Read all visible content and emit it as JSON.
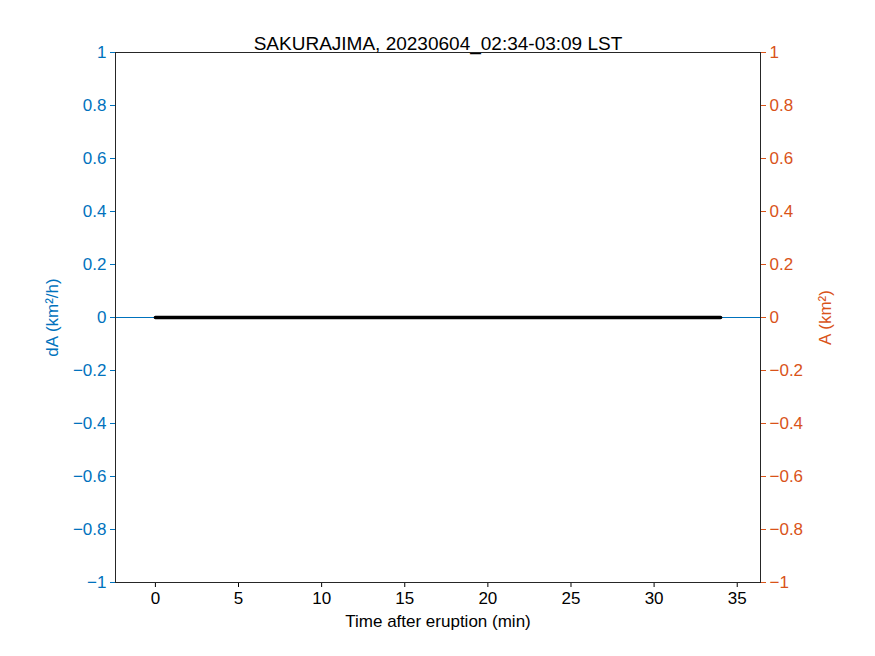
{
  "chart_data": {
    "type": "line",
    "title": "SAKURAJIMA, 20230604_02:34-03:09 LST",
    "x_label": "Time after eruption (min)",
    "y_label": "dA (km²/h)",
    "y2_label": "A (km²)",
    "x": [
      -2.4,
      0,
      34,
      36.4
    ],
    "series": [
      {
        "name": "dA",
        "color": "#0072BD",
        "axis": "y",
        "line_style": "solid",
        "values": [
          0,
          0,
          0,
          0
        ]
      },
      {
        "name": "A",
        "color": "#000000",
        "axis": "y2",
        "line_style": "solid",
        "values": [
          null,
          0,
          0,
          null
        ]
      }
    ],
    "xlim": [
      -2.4,
      36.4
    ],
    "xticks": [
      0,
      5,
      10,
      15,
      20,
      25,
      30,
      35
    ],
    "ylim": [
      -1,
      1
    ],
    "yticks": [
      -1,
      -0.8,
      -0.6,
      -0.4,
      -0.2,
      0,
      0.2,
      0.4,
      0.6,
      0.8,
      1
    ],
    "y2lim": [
      -1,
      1
    ],
    "y2ticks": [
      -1,
      -0.8,
      -0.6,
      -0.4,
      -0.2,
      0,
      0.2,
      0.4,
      0.6,
      0.8,
      1
    ],
    "y_color": "#0072BD",
    "y2_color": "#D95319",
    "grid": false
  }
}
